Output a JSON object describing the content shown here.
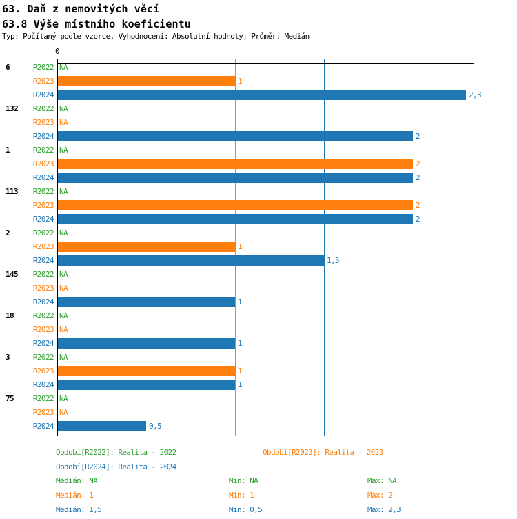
{
  "header": {
    "title": "63. Daň z nemovitých věcí",
    "subtitle": "63.8 Výše místního koeficientu",
    "meta": "Typ: Počítaný podle vzorce, Vyhodnocení: Absolutní hodnoty, Průměr: Medián"
  },
  "palette": {
    "R2022": "#2CA02C",
    "R2023": "#FF7F0E",
    "R2024": "#1F77B4",
    "axis": "#000000",
    "group_label": "#000000"
  },
  "chart_data": {
    "type": "bar",
    "orientation": "horizontal",
    "title": "63.8 Výše místního koeficientu",
    "xlabel": "",
    "ylabel": "",
    "xlim": [
      0,
      2.33
    ],
    "x_zero_tick_label": "0",
    "grid": false,
    "series": [
      "R2022",
      "R2023",
      "R2024"
    ],
    "reference_lines": [
      {
        "series": "R2023",
        "value": 1
      },
      {
        "series": "R2024",
        "value": 1.5
      }
    ],
    "groups": [
      {
        "label": "6",
        "rows": [
          {
            "series": "R2022",
            "value": null,
            "display": "NA"
          },
          {
            "series": "R2023",
            "value": 1,
            "display": "1"
          },
          {
            "series": "R2024",
            "value": 2.3,
            "display": "2,3"
          }
        ]
      },
      {
        "label": "132",
        "rows": [
          {
            "series": "R2022",
            "value": null,
            "display": "NA"
          },
          {
            "series": "R2023",
            "value": null,
            "display": "NA"
          },
          {
            "series": "R2024",
            "value": 2,
            "display": "2"
          }
        ]
      },
      {
        "label": "1",
        "rows": [
          {
            "series": "R2022",
            "value": null,
            "display": "NA"
          },
          {
            "series": "R2023",
            "value": 2,
            "display": "2"
          },
          {
            "series": "R2024",
            "value": 2,
            "display": "2"
          }
        ]
      },
      {
        "label": "113",
        "rows": [
          {
            "series": "R2022",
            "value": null,
            "display": "NA"
          },
          {
            "series": "R2023",
            "value": 2,
            "display": "2"
          },
          {
            "series": "R2024",
            "value": 2,
            "display": "2"
          }
        ]
      },
      {
        "label": "2",
        "rows": [
          {
            "series": "R2022",
            "value": null,
            "display": "NA"
          },
          {
            "series": "R2023",
            "value": 1,
            "display": "1"
          },
          {
            "series": "R2024",
            "value": 1.5,
            "display": "1,5"
          }
        ]
      },
      {
        "label": "145",
        "rows": [
          {
            "series": "R2022",
            "value": null,
            "display": "NA"
          },
          {
            "series": "R2023",
            "value": null,
            "display": "NA"
          },
          {
            "series": "R2024",
            "value": 1,
            "display": "1"
          }
        ]
      },
      {
        "label": "18",
        "rows": [
          {
            "series": "R2022",
            "value": null,
            "display": "NA"
          },
          {
            "series": "R2023",
            "value": null,
            "display": "NA"
          },
          {
            "series": "R2024",
            "value": 1,
            "display": "1"
          }
        ]
      },
      {
        "label": "3",
        "rows": [
          {
            "series": "R2022",
            "value": null,
            "display": "NA"
          },
          {
            "series": "R2023",
            "value": 1,
            "display": "1"
          },
          {
            "series": "R2024",
            "value": 1,
            "display": "1"
          }
        ]
      },
      {
        "label": "75",
        "rows": [
          {
            "series": "R2022",
            "value": null,
            "display": "NA"
          },
          {
            "series": "R2023",
            "value": null,
            "display": "NA"
          },
          {
            "series": "R2024",
            "value": 0.5,
            "display": "0,5"
          }
        ]
      }
    ]
  },
  "legend": {
    "items": [
      {
        "series": "R2022",
        "text": "Období[R2022]: Realita - 2022",
        "col": 0,
        "row": 0
      },
      {
        "series": "R2023",
        "text": "Období[R2023]: Realita - 2023",
        "col": 1,
        "row": 0
      },
      {
        "series": "R2024",
        "text": "Období[R2024]: Realita - 2024",
        "col": 0,
        "row": 1
      }
    ]
  },
  "stats": {
    "rows": [
      {
        "series": "R2022",
        "cells": [
          "Medián: NA",
          "Min: NA",
          "Max: NA"
        ]
      },
      {
        "series": "R2023",
        "cells": [
          "Medián: 1",
          "Min: 1",
          "Max: 2"
        ]
      },
      {
        "series": "R2024",
        "cells": [
          "Medián: 1,5",
          "Min: 0,5",
          "Max: 2,3"
        ]
      }
    ]
  }
}
